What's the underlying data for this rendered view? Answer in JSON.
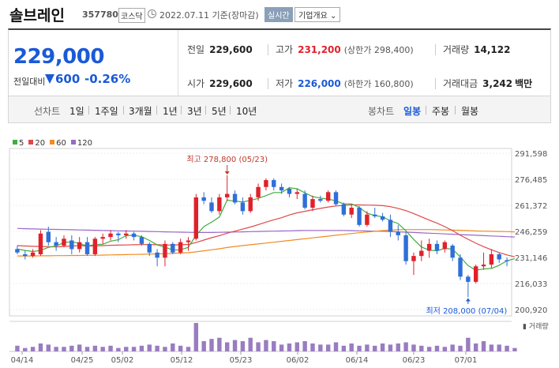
{
  "header": {
    "name": "솔브레인",
    "code": "357780",
    "market": "코스닥",
    "date": "2022.07.11  기준(장마감)",
    "realtime_label": "실시간",
    "company_label": "기업개요 ⌄"
  },
  "summary": {
    "current_price": "229,000",
    "change_label": "전일대비",
    "change_value": "600",
    "change_rate": "-0.26%",
    "cells": {
      "prev_close": {
        "label": "전일",
        "value": "229,600"
      },
      "high": {
        "label": "고가",
        "value": "231,200",
        "sub": "(상한가 298,400)"
      },
      "volume": {
        "label": "거래량",
        "value": "14,122"
      },
      "open": {
        "label": "시가",
        "value": "229,600"
      },
      "low": {
        "label": "저가",
        "value": "226,000",
        "sub": "(하한가 160,800)"
      },
      "amount": {
        "label": "거래대금",
        "value": "3,242",
        "unit": "백만"
      }
    }
  },
  "toolbar": {
    "line_chart_label": "선차트",
    "periods": [
      "1일",
      "1주일",
      "3개월",
      "1년",
      "3년",
      "5년",
      "10년"
    ],
    "candle_chart_label": "봉차트",
    "candle_periods": [
      "일봉",
      "주봉",
      "월봉"
    ],
    "active_candle": "일봉"
  },
  "colors": {
    "up": "#e0212b",
    "down": "#2f6fd8",
    "ma5": "#3fae3f",
    "ma20": "#e04848",
    "ma60": "#f08c20",
    "ma120": "#9a68c8",
    "volume": "#9a7cc0"
  },
  "chart_data": {
    "type": "candlestick",
    "legend": [
      {
        "name": "5",
        "color": "#3fae3f"
      },
      {
        "name": "20",
        "color": "#e04848"
      },
      {
        "name": "60",
        "color": "#f08c20"
      },
      {
        "name": "120",
        "color": "#9a68c8"
      }
    ],
    "y_ticks": [
      "291,598",
      "276,485",
      "261,372",
      "246,259",
      "231,146",
      "216,033",
      "200,920"
    ],
    "ylim": [
      200920,
      291598
    ],
    "x_ticks": [
      "04/14",
      "04/25",
      "05/02",
      "05/12",
      "05/23",
      "06/02",
      "06/14",
      "06/23",
      "07/01"
    ],
    "volume_label": "거래량",
    "high_annotation": "최고 278,800 (05/23)",
    "low_annotation": "최저 208,000 (07/04)",
    "candles": [
      {
        "o": 236000,
        "h": 238000,
        "l": 233000,
        "c": 234000
      },
      {
        "o": 233000,
        "h": 235000,
        "l": 230000,
        "c": 232000
      },
      {
        "o": 232000,
        "h": 236000,
        "l": 231000,
        "c": 234000
      },
      {
        "o": 233000,
        "h": 247000,
        "l": 232000,
        "c": 245000
      },
      {
        "o": 246000,
        "h": 249000,
        "l": 238000,
        "c": 240000
      },
      {
        "o": 240000,
        "h": 243000,
        "l": 235000,
        "c": 238000
      },
      {
        "o": 238000,
        "h": 244000,
        "l": 237000,
        "c": 242000
      },
      {
        "o": 241000,
        "h": 244000,
        "l": 233000,
        "c": 236000
      },
      {
        "o": 236000,
        "h": 243000,
        "l": 234000,
        "c": 240000
      },
      {
        "o": 240000,
        "h": 243000,
        "l": 232000,
        "c": 233000
      },
      {
        "o": 233000,
        "h": 243000,
        "l": 232000,
        "c": 242000
      },
      {
        "o": 242000,
        "h": 245000,
        "l": 239000,
        "c": 243000
      },
      {
        "o": 243000,
        "h": 247000,
        "l": 241000,
        "c": 245000
      },
      {
        "o": 245000,
        "h": 246000,
        "l": 240000,
        "c": 244000
      },
      {
        "o": 244000,
        "h": 247000,
        "l": 242000,
        "c": 245000
      },
      {
        "o": 245000,
        "h": 246000,
        "l": 241000,
        "c": 243000
      },
      {
        "o": 243000,
        "h": 244000,
        "l": 238000,
        "c": 239000
      },
      {
        "o": 239000,
        "h": 240000,
        "l": 232000,
        "c": 234000
      },
      {
        "o": 234000,
        "h": 236000,
        "l": 226000,
        "c": 231000
      },
      {
        "o": 231000,
        "h": 241000,
        "l": 226000,
        "c": 239000
      },
      {
        "o": 239000,
        "h": 240000,
        "l": 233000,
        "c": 234000
      },
      {
        "o": 234000,
        "h": 242000,
        "l": 233000,
        "c": 240000
      },
      {
        "o": 240000,
        "h": 243000,
        "l": 235000,
        "c": 241000
      },
      {
        "o": 242000,
        "h": 268000,
        "l": 241000,
        "c": 266000
      },
      {
        "o": 266000,
        "h": 269000,
        "l": 262000,
        "c": 264000
      },
      {
        "o": 263000,
        "h": 266000,
        "l": 257000,
        "c": 258000
      },
      {
        "o": 258000,
        "h": 268000,
        "l": 256000,
        "c": 266000
      },
      {
        "o": 266000,
        "h": 278800,
        "l": 264000,
        "c": 268000
      },
      {
        "o": 268000,
        "h": 270000,
        "l": 262000,
        "c": 263000
      },
      {
        "o": 263000,
        "h": 266000,
        "l": 256000,
        "c": 258000
      },
      {
        "o": 258000,
        "h": 268000,
        "l": 257000,
        "c": 266000
      },
      {
        "o": 266000,
        "h": 274000,
        "l": 264000,
        "c": 272000
      },
      {
        "o": 272000,
        "h": 277000,
        "l": 270000,
        "c": 276000
      },
      {
        "o": 276000,
        "h": 277000,
        "l": 270000,
        "c": 272000
      },
      {
        "o": 272000,
        "h": 274000,
        "l": 268000,
        "c": 270000
      },
      {
        "o": 271000,
        "h": 272000,
        "l": 266000,
        "c": 268000
      },
      {
        "o": 268000,
        "h": 271000,
        "l": 265000,
        "c": 269000
      },
      {
        "o": 268000,
        "h": 270000,
        "l": 259000,
        "c": 260000
      },
      {
        "o": 260000,
        "h": 267000,
        "l": 258000,
        "c": 265000
      },
      {
        "o": 265000,
        "h": 267000,
        "l": 263000,
        "c": 264000
      },
      {
        "o": 264000,
        "h": 270000,
        "l": 263000,
        "c": 269000
      },
      {
        "o": 269000,
        "h": 270000,
        "l": 261000,
        "c": 262000
      },
      {
        "o": 262000,
        "h": 263000,
        "l": 255000,
        "c": 256000
      },
      {
        "o": 256000,
        "h": 262000,
        "l": 254000,
        "c": 260000
      },
      {
        "o": 260000,
        "h": 261000,
        "l": 249000,
        "c": 250000
      },
      {
        "o": 250000,
        "h": 258000,
        "l": 249000,
        "c": 256000
      },
      {
        "o": 256000,
        "h": 260000,
        "l": 254000,
        "c": 255000
      },
      {
        "o": 255000,
        "h": 257000,
        "l": 252000,
        "c": 253000
      },
      {
        "o": 253000,
        "h": 256000,
        "l": 243000,
        "c": 246000
      },
      {
        "o": 246000,
        "h": 250000,
        "l": 241000,
        "c": 244000
      },
      {
        "o": 244000,
        "h": 246000,
        "l": 227000,
        "c": 229000
      },
      {
        "o": 229000,
        "h": 234000,
        "l": 221000,
        "c": 232000
      },
      {
        "o": 232000,
        "h": 241000,
        "l": 229000,
        "c": 235000
      },
      {
        "o": 235000,
        "h": 242000,
        "l": 231000,
        "c": 239000
      },
      {
        "o": 239000,
        "h": 241000,
        "l": 233000,
        "c": 235000
      },
      {
        "o": 236000,
        "h": 241000,
        "l": 234000,
        "c": 240000
      },
      {
        "o": 238000,
        "h": 239000,
        "l": 229000,
        "c": 231000
      },
      {
        "o": 231000,
        "h": 233000,
        "l": 218000,
        "c": 220000
      },
      {
        "o": 220000,
        "h": 221000,
        "l": 208000,
        "c": 217000
      },
      {
        "o": 217000,
        "h": 227000,
        "l": 216000,
        "c": 226000
      },
      {
        "o": 226000,
        "h": 234000,
        "l": 224000,
        "c": 227000
      },
      {
        "o": 227000,
        "h": 236000,
        "l": 225000,
        "c": 233000
      },
      {
        "o": 233000,
        "h": 234000,
        "l": 228000,
        "c": 230000
      },
      {
        "o": 229600,
        "h": 231200,
        "l": 226000,
        "c": 229000
      }
    ],
    "ma5": [
      236000,
      235200,
      234600,
      235200,
      237000,
      237800,
      239800,
      240200,
      239200,
      237800,
      238600,
      238800,
      240600,
      241400,
      243800,
      244000,
      243200,
      241000,
      238400,
      237200,
      235400,
      235600,
      237000,
      244000,
      249000,
      251600,
      254600,
      264400,
      263800,
      263400,
      264200,
      265400,
      267000,
      268800,
      268800,
      271600,
      271000,
      268600,
      266400,
      265600,
      265000,
      264000,
      262200,
      262200,
      260200,
      256800,
      255400,
      254800,
      252400,
      250800,
      246600,
      241600,
      237200,
      235400,
      235000,
      236400,
      236000,
      231400,
      226400,
      223800,
      224400,
      224800,
      226600,
      229200,
      230400
    ],
    "ma20": [
      238000,
      237800,
      237600,
      237500,
      237400,
      237300,
      237500,
      237800,
      238000,
      237800,
      237800,
      238000,
      238200,
      238300,
      238400,
      238500,
      238600,
      238600,
      238500,
      238400,
      238300,
      238500,
      238700,
      239800,
      241200,
      242600,
      243800,
      245200,
      246400,
      247600,
      248800,
      250200,
      251600,
      253000,
      254200,
      255800,
      257000,
      257900,
      258800,
      259600,
      260400,
      261000,
      261300,
      261700,
      261600,
      261500,
      261400,
      261200,
      260600,
      259600,
      258300,
      256600,
      254700,
      252800,
      251000,
      249000,
      246700,
      244000,
      241700,
      239400,
      237400,
      235600,
      234000,
      232600,
      231500
    ],
    "ma60": [
      232000,
      232000,
      232000,
      232100,
      232100,
      232200,
      232200,
      232300,
      232300,
      232400,
      232400,
      232500,
      232600,
      232700,
      232800,
      232900,
      233000,
      233100,
      233200,
      233300,
      233500,
      233700,
      233900,
      234400,
      235000,
      235600,
      236200,
      236900,
      237500,
      238000,
      238500,
      239000,
      239500,
      240000,
      240500,
      241000,
      241500,
      242000,
      242500,
      243000,
      243500,
      244000,
      244500,
      245000,
      245500,
      245900,
      246300,
      246700,
      247000,
      247200,
      247300,
      247300,
      247300,
      247300,
      247200,
      247100,
      247000,
      246900,
      246700,
      246500,
      246400,
      246300,
      246200,
      246100,
      246000
    ],
    "ma120": [
      248000,
      247800,
      247700,
      247600,
      247500,
      247400,
      247300,
      247200,
      247100,
      247000,
      246900,
      246800,
      246700,
      246600,
      246500,
      246400,
      246300,
      246200,
      246100,
      246000,
      245900,
      245800,
      245700,
      245600,
      245600,
      245600,
      245700,
      245800,
      245900,
      246000,
      246100,
      246200,
      246300,
      246400,
      246500,
      246600,
      246700,
      246800,
      246800,
      246800,
      246800,
      246800,
      246800,
      246700,
      246600,
      246500,
      246400,
      246300,
      246200,
      246000,
      245800,
      245600,
      245400,
      245200,
      245000,
      244800,
      244600,
      244400,
      244200,
      244000,
      243800,
      243600,
      243400,
      243200,
      243000
    ],
    "volume": [
      5,
      3,
      4,
      7,
      6,
      4,
      4,
      5,
      6,
      4,
      5,
      4,
      5,
      3,
      4,
      4,
      5,
      6,
      5,
      4,
      7,
      5,
      4,
      25,
      9,
      11,
      12,
      8,
      10,
      9,
      12,
      8,
      10,
      9,
      6,
      7,
      8,
      9,
      7,
      6,
      6,
      8,
      5,
      7,
      5,
      6,
      5,
      7,
      6,
      7,
      8,
      6,
      5,
      4,
      5,
      4,
      6,
      5,
      12,
      7,
      9,
      6,
      6,
      5,
      3
    ]
  }
}
